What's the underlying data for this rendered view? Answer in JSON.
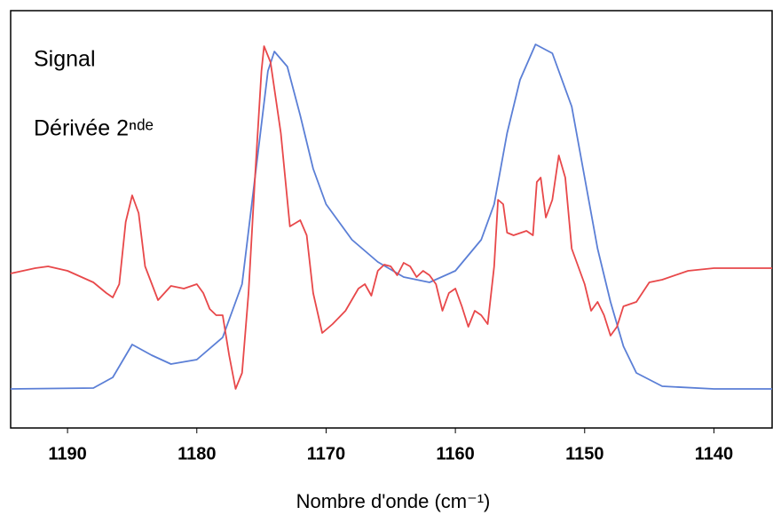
{
  "chart_data": {
    "type": "line",
    "x_label": "Nombre d'onde (cm⁻¹)",
    "xlim": [
      1194.4,
      1135.5
    ],
    "xticks": [
      1190,
      1180,
      1170,
      1160,
      1150,
      1140
    ],
    "ylim": [
      0,
      470
    ],
    "series": [
      {
        "name": "Signal",
        "color": "#5b7fd6",
        "x": [
          1194.4,
          1188,
          1186.5,
          1185,
          1183.5,
          1182,
          1180,
          1178,
          1176.5,
          1175.5,
          1174.5,
          1174,
          1173,
          1172,
          1171,
          1170,
          1168,
          1166,
          1164,
          1162,
          1160,
          1158,
          1157,
          1156,
          1155,
          1153.8,
          1152.5,
          1151,
          1150,
          1149,
          1148,
          1147,
          1146,
          1144,
          1140,
          1135.5
        ],
        "values": [
          44,
          45,
          57,
          94,
          82,
          72,
          77,
          102,
          162,
          282,
          402,
          424,
          407,
          352,
          292,
          252,
          212,
          187,
          170,
          164,
          177,
          212,
          252,
          332,
          392,
          432,
          422,
          362,
          282,
          202,
          142,
          92,
          62,
          47,
          44,
          44
        ]
      },
      {
        "name": "Dérivée 2ⁿᵈᵉ",
        "color": "#e8484a",
        "x": [
          1194.4,
          1192.5,
          1191.5,
          1190,
          1188,
          1187,
          1186.5,
          1186,
          1185.5,
          1185,
          1184.5,
          1184,
          1183,
          1182,
          1181,
          1180,
          1179.5,
          1179,
          1178.5,
          1178,
          1177.5,
          1177,
          1176.5,
          1176,
          1175.5,
          1175,
          1174.8,
          1174.3,
          1173.5,
          1172.8,
          1172,
          1171.5,
          1171,
          1170.3,
          1169.5,
          1168.5,
          1167.5,
          1167,
          1166.5,
          1166,
          1165.5,
          1165,
          1164.5,
          1164,
          1163.5,
          1163,
          1162.5,
          1162,
          1161.5,
          1161,
          1160.5,
          1160,
          1159.5,
          1159,
          1158.5,
          1158,
          1157.5,
          1157,
          1156.7,
          1156.3,
          1156,
          1155.5,
          1154.5,
          1154,
          1153.7,
          1153.4,
          1153,
          1152.5,
          1152,
          1151.5,
          1151,
          1150,
          1149.5,
          1149,
          1148.5,
          1148,
          1147.5,
          1147,
          1146,
          1145,
          1144,
          1142,
          1140,
          1135.5
        ],
        "values": [
          174,
          180,
          182,
          177,
          164,
          152,
          147,
          162,
          232,
          262,
          242,
          182,
          144,
          160,
          157,
          162,
          152,
          134,
          127,
          127,
          82,
          44,
          62,
          152,
          282,
          402,
          430,
          412,
          332,
          227,
          234,
          217,
          152,
          107,
          117,
          132,
          157,
          162,
          149,
          177,
          184,
          182,
          172,
          186,
          182,
          170,
          177,
          172,
          162,
          132,
          152,
          157,
          137,
          114,
          132,
          127,
          117,
          182,
          257,
          252,
          220,
          217,
          222,
          217,
          277,
          282,
          237,
          257,
          307,
          282,
          202,
          162,
          132,
          142,
          127,
          104,
          114,
          137,
          142,
          164,
          167,
          177,
          180,
          180
        ]
      }
    ]
  }
}
